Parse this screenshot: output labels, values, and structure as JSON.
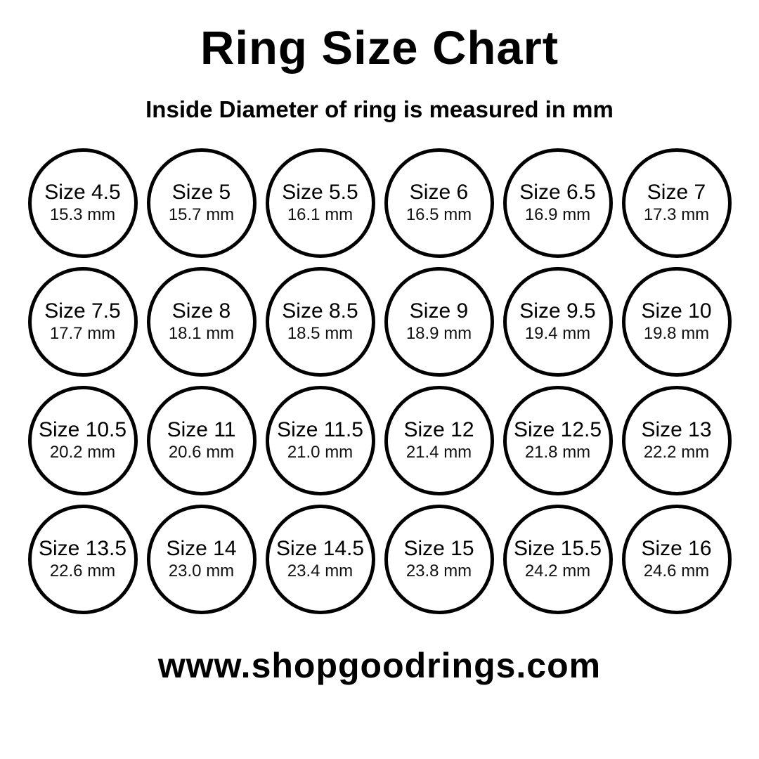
{
  "title": "Ring Size Chart",
  "subtitle": "Inside Diameter of ring is measured in mm",
  "footer": {
    "website": "www.shopgoodrings.com"
  },
  "colors": {
    "background": "#ffffff",
    "text": "#000000",
    "circle_border": "#000000"
  },
  "sizes": [
    {
      "label": "Size 4.5",
      "diameter": "15.3 mm"
    },
    {
      "label": "Size 5",
      "diameter": "15.7 mm"
    },
    {
      "label": "Size 5.5",
      "diameter": "16.1 mm"
    },
    {
      "label": "Size 6",
      "diameter": "16.5 mm"
    },
    {
      "label": "Size 6.5",
      "diameter": "16.9 mm"
    },
    {
      "label": "Size 7",
      "diameter": "17.3 mm"
    },
    {
      "label": "Size 7.5",
      "diameter": "17.7 mm"
    },
    {
      "label": "Size 8",
      "diameter": "18.1 mm"
    },
    {
      "label": "Size 8.5",
      "diameter": "18.5 mm"
    },
    {
      "label": "Size 9",
      "diameter": "18.9 mm"
    },
    {
      "label": "Size 9.5",
      "diameter": "19.4 mm"
    },
    {
      "label": "Size 10",
      "diameter": "19.8 mm"
    },
    {
      "label": "Size 10.5",
      "diameter": "20.2 mm"
    },
    {
      "label": "Size 11",
      "diameter": "20.6 mm"
    },
    {
      "label": "Size 11.5",
      "diameter": "21.0 mm"
    },
    {
      "label": "Size 12",
      "diameter": "21.4 mm"
    },
    {
      "label": "Size 12.5",
      "diameter": "21.8 mm"
    },
    {
      "label": "Size 13",
      "diameter": "22.2 mm"
    },
    {
      "label": "Size 13.5",
      "diameter": "22.6 mm"
    },
    {
      "label": "Size 14",
      "diameter": "23.0 mm"
    },
    {
      "label": "Size 14.5",
      "diameter": "23.4 mm"
    },
    {
      "label": "Size 15",
      "diameter": "23.8 mm"
    },
    {
      "label": "Size 15.5",
      "diameter": "24.2 mm"
    },
    {
      "label": "Size 16",
      "diameter": "24.6 mm"
    }
  ],
  "chart_data": {
    "type": "table",
    "title": "Ring Size Chart",
    "subtitle": "Inside Diameter of ring is measured in mm",
    "columns": [
      "ring_size",
      "inside_diameter_mm"
    ],
    "rows": [
      [
        4.5,
        15.3
      ],
      [
        5,
        15.7
      ],
      [
        5.5,
        16.1
      ],
      [
        6,
        16.5
      ],
      [
        6.5,
        16.9
      ],
      [
        7,
        17.3
      ],
      [
        7.5,
        17.7
      ],
      [
        8,
        18.1
      ],
      [
        8.5,
        18.5
      ],
      [
        9,
        18.9
      ],
      [
        9.5,
        19.4
      ],
      [
        10,
        19.8
      ],
      [
        10.5,
        20.2
      ],
      [
        11,
        20.6
      ],
      [
        11.5,
        21.0
      ],
      [
        12,
        21.4
      ],
      [
        12.5,
        21.8
      ],
      [
        13,
        22.2
      ],
      [
        13.5,
        22.6
      ],
      [
        14,
        23.0
      ],
      [
        14.5,
        23.4
      ],
      [
        15,
        23.8
      ],
      [
        15.5,
        24.2
      ],
      [
        16,
        24.6
      ]
    ],
    "layout": {
      "grid_columns": 6,
      "grid_rows": 4
    }
  }
}
